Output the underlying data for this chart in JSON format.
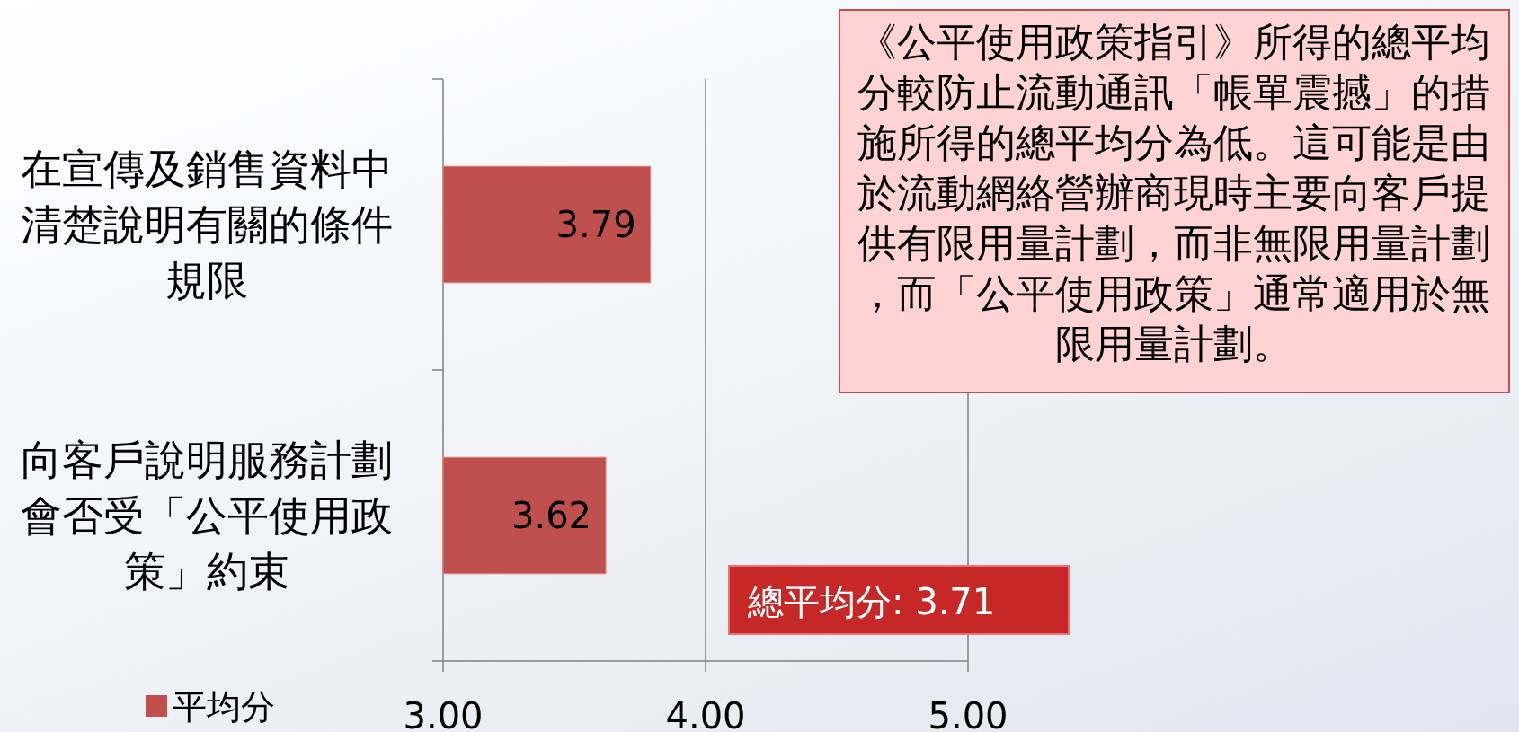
{
  "chart_data": {
    "type": "bar",
    "orientation": "horizontal",
    "categories": [
      "在宣傳及銷售資料中清楚說明有關的條件規限",
      "向客戶說明服務計劃會否受「公平使用政策」約束"
    ],
    "series": [
      {
        "name": "平均分",
        "color": "#c0504d",
        "values": [
          3.79,
          3.62
        ]
      }
    ],
    "xlim": [
      3,
      5
    ],
    "xticks": [
      {
        "value": 3,
        "label": "3.00"
      },
      {
        "value": 4,
        "label": "4.00"
      },
      {
        "value": 5,
        "label": "5.00"
      }
    ],
    "grid": "x",
    "legend": "bottom left",
    "data_labels": true,
    "annotations": [
      "《公平使用政策指引》所得的總平均分較防止流動通訊「帳單震撼」的措施所得的總平均分為低。這可能是由於流動網絡營辦商現時主要向客戶提供有限用量計劃，而非無限用量計劃，而「公平使用政策」通常適用於無限用量計劃。",
      "總平均分: 3.71"
    ]
  }
}
